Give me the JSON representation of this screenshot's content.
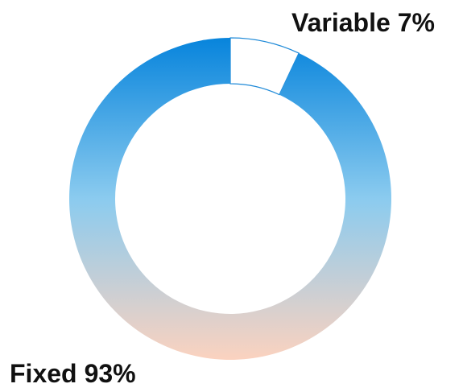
{
  "chart_data": {
    "type": "donut",
    "categories": [
      "Variable",
      "Fixed"
    ],
    "values": [
      7,
      93
    ],
    "value_labels": [
      "7%",
      "93%"
    ],
    "colors": [
      "#ffffff",
      "gradient"
    ],
    "outline_color": "#1f8ad8",
    "gradient": [
      "#0784dc",
      "#8bcbef",
      "#fbd2bf"
    ]
  }
}
